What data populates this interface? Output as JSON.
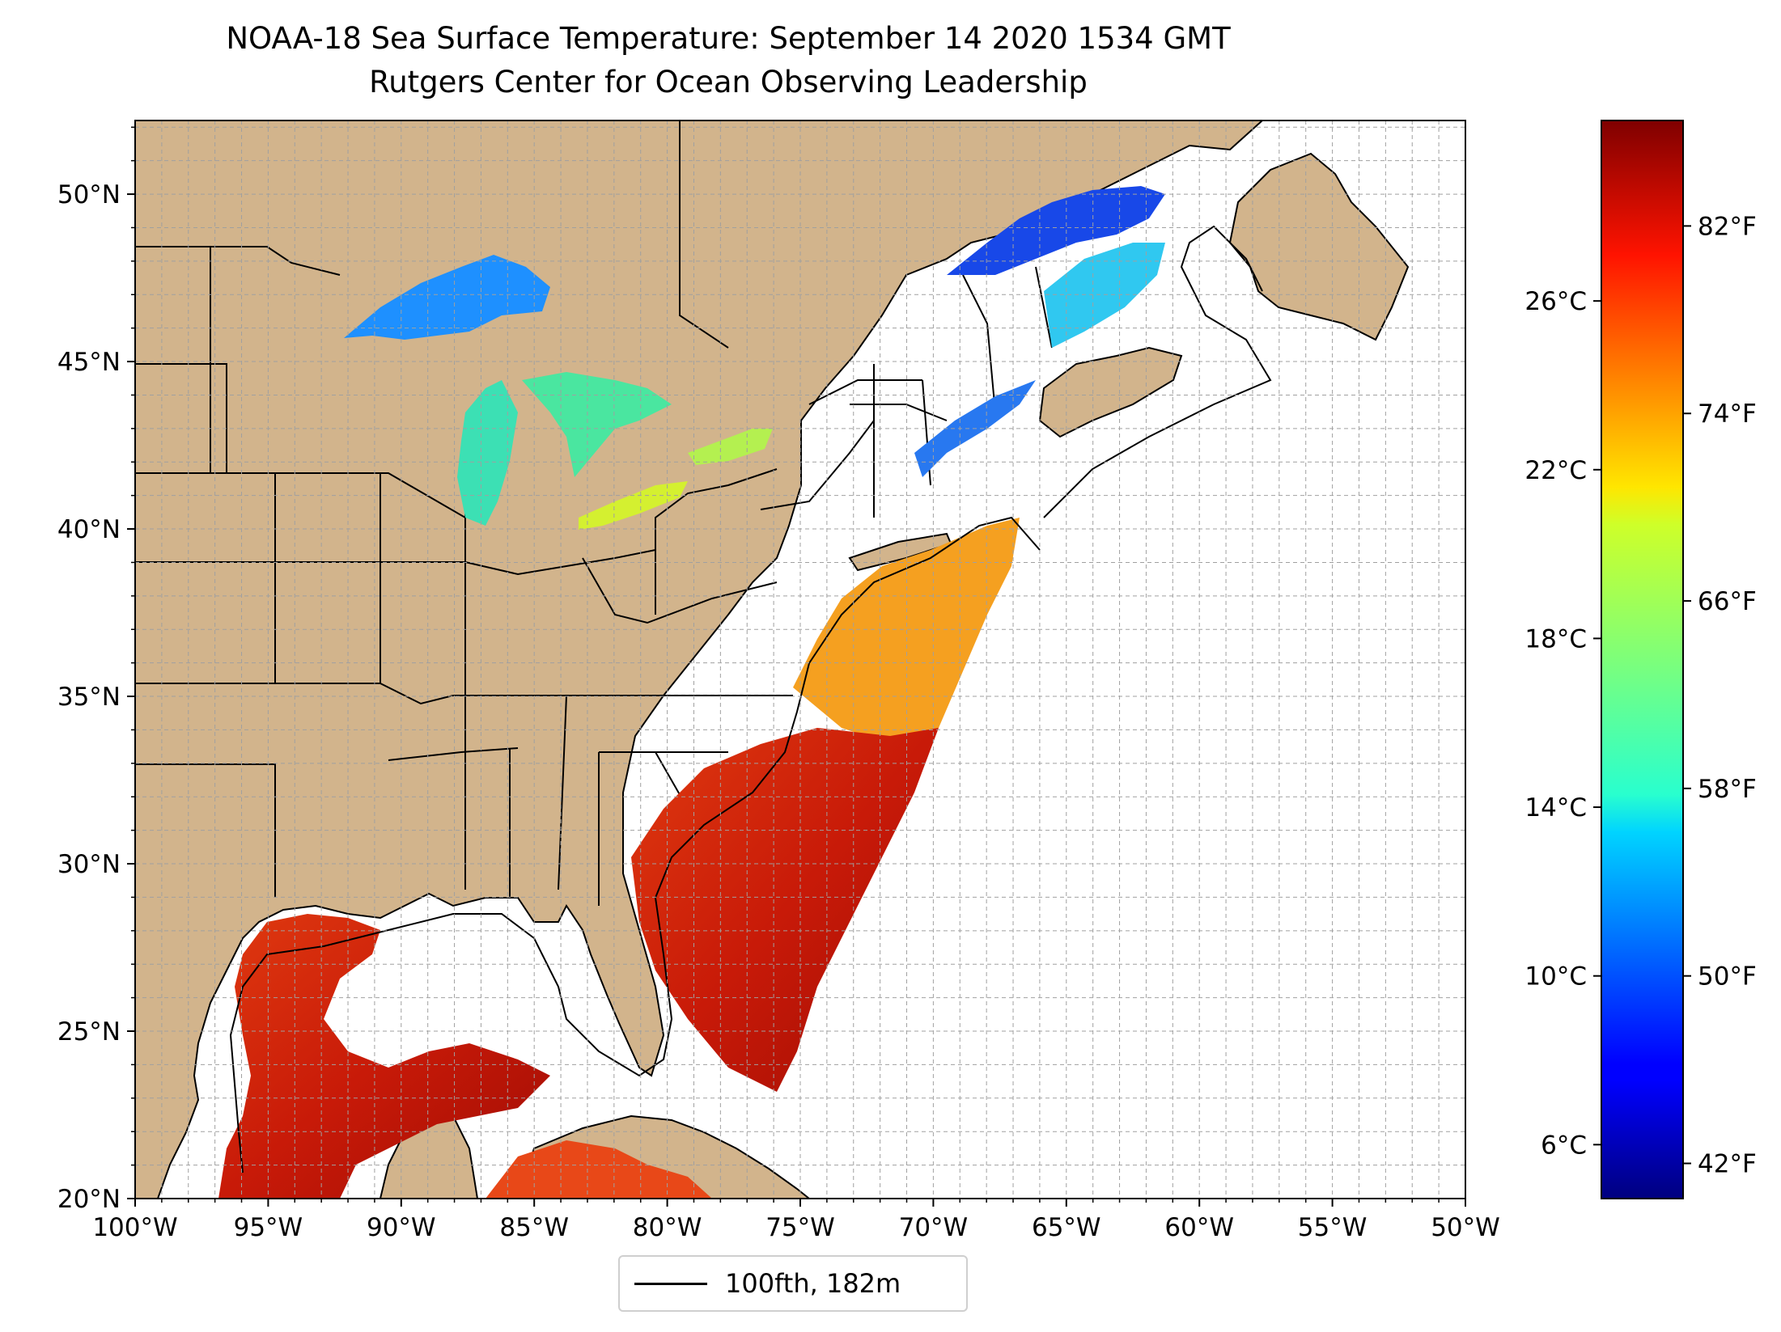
{
  "title": {
    "line1": "NOAA-18 Sea Surface Temperature: September 14 2020 1534 GMT",
    "line2": "Rutgers Center for Ocean Observing Leadership"
  },
  "map": {
    "lon_range": [
      -100,
      -50
    ],
    "lat_range": [
      20,
      52.2
    ],
    "land_color": "#d2b48c",
    "lake_color": "#96b4e6",
    "ocean_color": "#ffffff",
    "grid": "dashed gray, 1 degree",
    "lat_ticks": [
      {
        "value": 20,
        "label": "20°N"
      },
      {
        "value": 25,
        "label": "25°N"
      },
      {
        "value": 30,
        "label": "30°N"
      },
      {
        "value": 35,
        "label": "35°N"
      },
      {
        "value": 40,
        "label": "40°N"
      },
      {
        "value": 45,
        "label": "45°N"
      },
      {
        "value": 50,
        "label": "50°N"
      }
    ],
    "lon_ticks": [
      {
        "value": -100,
        "label": "100°W"
      },
      {
        "value": -95,
        "label": "95°W"
      },
      {
        "value": -90,
        "label": "90°W"
      },
      {
        "value": -85,
        "label": "85°W"
      },
      {
        "value": -80,
        "label": "80°W"
      },
      {
        "value": -75,
        "label": "75°W"
      },
      {
        "value": -70,
        "label": "70°W"
      },
      {
        "value": -65,
        "label": "65°W"
      },
      {
        "value": -60,
        "label": "60°W"
      },
      {
        "value": -55,
        "label": "55°W"
      },
      {
        "value": -50,
        "label": "50°W"
      }
    ]
  },
  "colorbar": {
    "colormap": "jet",
    "range_f": [
      40.5,
      86.5
    ],
    "celsius_ticks": [
      {
        "value_f": 42.8,
        "label": "6°C"
      },
      {
        "value_f": 50.0,
        "label": "10°C"
      },
      {
        "value_f": 57.2,
        "label": "14°C"
      },
      {
        "value_f": 64.4,
        "label": "18°C"
      },
      {
        "value_f": 71.6,
        "label": "22°C"
      },
      {
        "value_f": 78.8,
        "label": "26°C"
      }
    ],
    "fahrenheit_ticks": [
      {
        "value_f": 42,
        "label": "42°F"
      },
      {
        "value_f": 50,
        "label": "50°F"
      },
      {
        "value_f": 58,
        "label": "58°F"
      },
      {
        "value_f": 66,
        "label": "66°F"
      },
      {
        "value_f": 74,
        "label": "74°F"
      },
      {
        "value_f": 82,
        "label": "82°F"
      }
    ]
  },
  "legend": {
    "label": "100fth, 182m",
    "line_color": "#000000"
  }
}
